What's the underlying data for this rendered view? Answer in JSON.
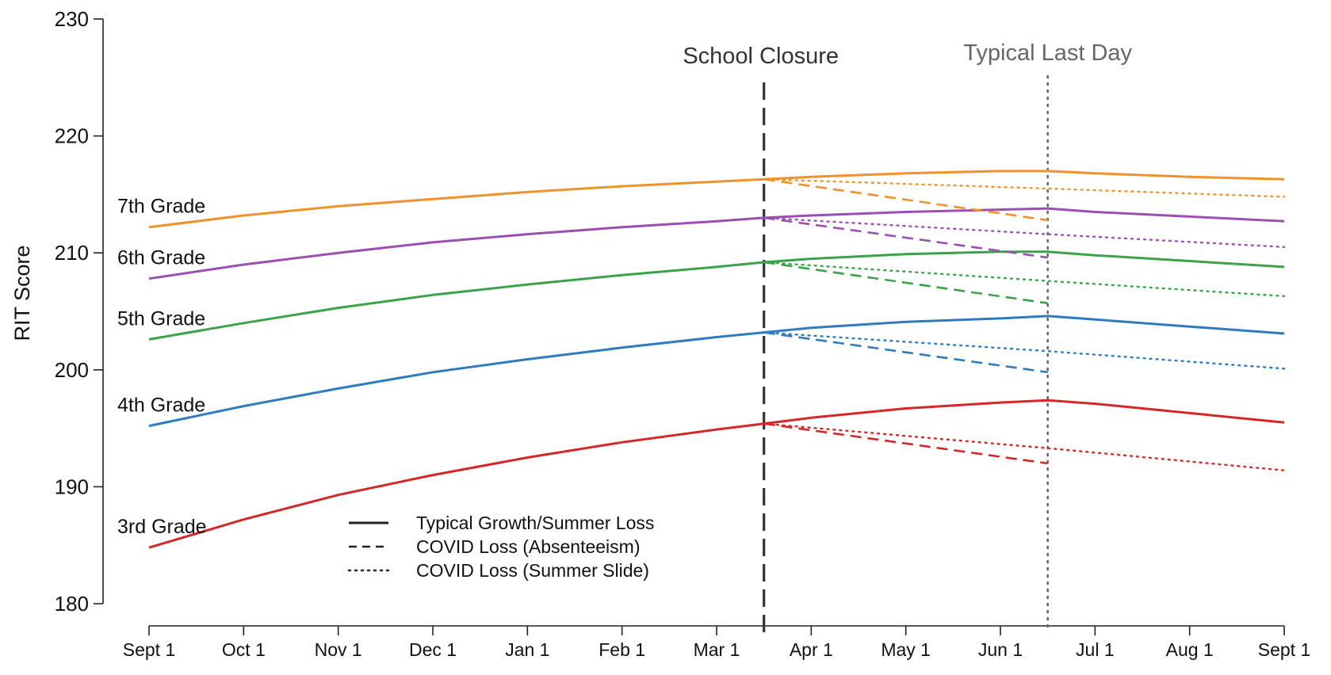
{
  "chart_data": {
    "type": "line",
    "ylabel": "RIT Score",
    "xlabel": "",
    "ylim": [
      180,
      230
    ],
    "y_ticks": [
      180,
      190,
      200,
      210,
      220,
      230
    ],
    "x_tick_labels": [
      "Sept 1",
      "Oct 1",
      "Nov 1",
      "Dec 1",
      "Jan 1",
      "Feb 1",
      "Mar 1",
      "Apr 1",
      "May 1",
      "Jun 1",
      "Jul 1",
      "Aug 1",
      "Sept 1"
    ],
    "x_range_months": [
      0,
      12
    ],
    "annotations": [
      {
        "label": "School Closure",
        "x_month": 6.5,
        "style": "dashed",
        "color": "#333333"
      },
      {
        "label": "Typical Last Day",
        "x_month": 9.5,
        "style": "dotted",
        "color": "#666666"
      }
    ],
    "legend": {
      "position": "bottom-center",
      "entries": [
        {
          "label": "Typical Growth/Summer Loss",
          "style": "solid"
        },
        {
          "label": "COVID Loss (Absenteeism)",
          "style": "dashed"
        },
        {
          "label": "COVID Loss (Summer Slide)",
          "style": "dotted"
        }
      ]
    },
    "series": [
      {
        "name": "3rd Grade",
        "color": "#d62728",
        "typical": {
          "x": [
            0,
            1,
            2,
            3,
            4,
            5,
            6,
            6.5,
            7,
            8,
            9,
            9.5,
            10,
            11,
            12
          ],
          "y": [
            184.8,
            187.2,
            189.3,
            191.0,
            192.5,
            193.8,
            194.9,
            195.4,
            195.9,
            196.7,
            197.2,
            197.4,
            197.1,
            196.3,
            195.5
          ]
        },
        "absenteeism": {
          "x": [
            6.5,
            9.5
          ],
          "y": [
            195.4,
            192.0
          ]
        },
        "summer_slide": {
          "x": [
            6.5,
            9.5,
            12
          ],
          "y": [
            195.4,
            193.3,
            191.4
          ]
        }
      },
      {
        "name": "4th Grade",
        "color": "#2e7bbf",
        "typical": {
          "x": [
            0,
            1,
            2,
            3,
            4,
            5,
            6,
            6.5,
            7,
            8,
            9,
            9.5,
            10,
            11,
            12
          ],
          "y": [
            195.2,
            196.9,
            198.4,
            199.8,
            200.9,
            201.9,
            202.8,
            203.2,
            203.6,
            204.1,
            204.4,
            204.6,
            204.3,
            203.7,
            203.1
          ]
        },
        "absenteeism": {
          "x": [
            6.5,
            9.5
          ],
          "y": [
            203.2,
            199.8
          ]
        },
        "summer_slide": {
          "x": [
            6.5,
            9.5,
            12
          ],
          "y": [
            203.2,
            201.6,
            200.1
          ]
        }
      },
      {
        "name": "5th Grade",
        "color": "#3aa34a",
        "typical": {
          "x": [
            0,
            1,
            2,
            3,
            4,
            5,
            6,
            6.5,
            7,
            8,
            9,
            9.5,
            10,
            11,
            12
          ],
          "y": [
            202.6,
            204.0,
            205.3,
            206.4,
            207.3,
            208.1,
            208.8,
            209.2,
            209.5,
            209.9,
            210.1,
            210.1,
            209.8,
            209.3,
            208.8
          ]
        },
        "absenteeism": {
          "x": [
            6.5,
            9.5
          ],
          "y": [
            209.2,
            205.7
          ]
        },
        "summer_slide": {
          "x": [
            6.5,
            9.5,
            12
          ],
          "y": [
            209.2,
            207.6,
            206.3
          ]
        }
      },
      {
        "name": "6th Grade",
        "color": "#9b4fb3",
        "typical": {
          "x": [
            0,
            1,
            2,
            3,
            4,
            5,
            6,
            6.5,
            7,
            8,
            9,
            9.5,
            10,
            11,
            12
          ],
          "y": [
            207.8,
            209.0,
            210.0,
            210.9,
            211.6,
            212.2,
            212.7,
            213.0,
            213.2,
            213.5,
            213.7,
            213.8,
            213.5,
            213.1,
            212.7
          ]
        },
        "absenteeism": {
          "x": [
            6.5,
            9.5
          ],
          "y": [
            213.0,
            209.6
          ]
        },
        "summer_slide": {
          "x": [
            6.5,
            9.5,
            12
          ],
          "y": [
            213.0,
            211.6,
            210.5
          ]
        }
      },
      {
        "name": "7th Grade",
        "color": "#f0922b",
        "typical": {
          "x": [
            0,
            1,
            2,
            3,
            4,
            5,
            6,
            6.5,
            7,
            8,
            9,
            9.5,
            10,
            11,
            12
          ],
          "y": [
            212.2,
            213.2,
            214.0,
            214.6,
            215.2,
            215.7,
            216.1,
            216.3,
            216.5,
            216.8,
            217.0,
            217.0,
            216.8,
            216.5,
            216.3
          ]
        },
        "absenteeism": {
          "x": [
            6.5,
            9.5
          ],
          "y": [
            216.3,
            212.8
          ]
        },
        "summer_slide": {
          "x": [
            6.5,
            9.5,
            12
          ],
          "y": [
            216.3,
            215.5,
            214.8
          ]
        }
      }
    ]
  }
}
